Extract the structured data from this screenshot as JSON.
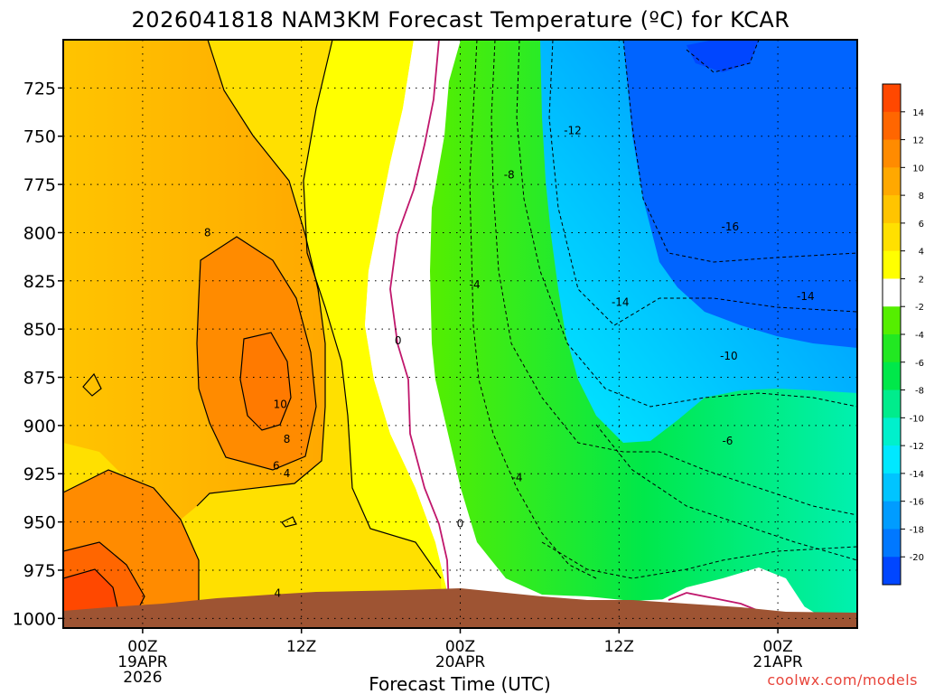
{
  "chart_data": {
    "type": "contour",
    "title": "2026041818 NAM3KM Forecast Temperature (ºC) for KCAR",
    "xlabel": "Forecast Time (UTC)",
    "credit": "coolwx.com/models",
    "x_ticks": [
      {
        "h": 6,
        "lines": [
          "00Z",
          "19APR",
          "2026"
        ]
      },
      {
        "h": 18,
        "lines": [
          "12Z"
        ]
      },
      {
        "h": 30,
        "lines": [
          "00Z",
          "20APR"
        ]
      },
      {
        "h": 42,
        "lines": [
          "12Z"
        ]
      },
      {
        "h": 54,
        "lines": [
          "00Z",
          "21APR"
        ]
      }
    ],
    "xlim": [
      0,
      60
    ],
    "y_ticks": [
      725,
      750,
      775,
      800,
      825,
      850,
      875,
      900,
      925,
      950,
      975,
      1000
    ],
    "ylim": [
      700,
      1005
    ],
    "ylabel": "",
    "colorbar": {
      "labels": [
        "14",
        "12",
        "10",
        "8",
        "6",
        "4",
        "2",
        "-2",
        "-4",
        "-6",
        "-8",
        "-10",
        "-12",
        "-14",
        "-16",
        "-18",
        "-20"
      ],
      "colors": [
        "#ff4800",
        "#ff6600",
        "#ff8b00",
        "#ffa800",
        "#ffc400",
        "#ffe000",
        "#ffff00",
        "#ffffff",
        "#55ee00",
        "#22e822",
        "#00e84a",
        "#00ec8c",
        "#00f0cc",
        "#00e8ff",
        "#00c4ff",
        "#009cff",
        "#0078ff",
        "#0046ff"
      ]
    },
    "contour_labels": [
      {
        "text": "8",
        "h": 10.9,
        "p": 800
      },
      {
        "text": "10",
        "h": 16.4,
        "p": 889
      },
      {
        "text": "8",
        "h": 16.9,
        "p": 907
      },
      {
        "text": "6",
        "h": 16.1,
        "p": 921
      },
      {
        "text": "4",
        "h": 16.9,
        "p": 925
      },
      {
        "text": "4",
        "h": 16.2,
        "p": 987
      },
      {
        "text": "0",
        "h": 25.3,
        "p": 856
      },
      {
        "text": "0",
        "h": 30.0,
        "p": 951
      },
      {
        "text": "-4",
        "h": 31.1,
        "p": 827
      },
      {
        "text": "-4",
        "h": 34.3,
        "p": 927
      },
      {
        "text": "-8",
        "h": 33.7,
        "p": 770
      },
      {
        "text": "-12",
        "h": 38.5,
        "p": 747
      },
      {
        "text": "-14",
        "h": 42.1,
        "p": 836
      },
      {
        "text": "-16",
        "h": 50.4,
        "p": 797
      },
      {
        "text": "-14",
        "h": 56.1,
        "p": 833
      },
      {
        "text": "-10",
        "h": 50.3,
        "p": 864
      },
      {
        "text": "-6",
        "h": 50.2,
        "p": 908
      }
    ],
    "regions": [
      {
        "temp": "2 to 4 (yellow)",
        "hours": [
          0,
          30
        ]
      },
      {
        "temp": "4 to 12 (orange)",
        "hours": [
          0,
          24
        ]
      },
      {
        "temp": "-2 to -8 (green)",
        "hours": [
          27,
          60
        ]
      },
      {
        "temp": "-10 to -18 (blue)",
        "hours": [
          34,
          60
        ]
      }
    ]
  },
  "colors": {
    "terrain": "#9e5433",
    "freezing_line": "#c0176c",
    "grid": "#000000"
  }
}
